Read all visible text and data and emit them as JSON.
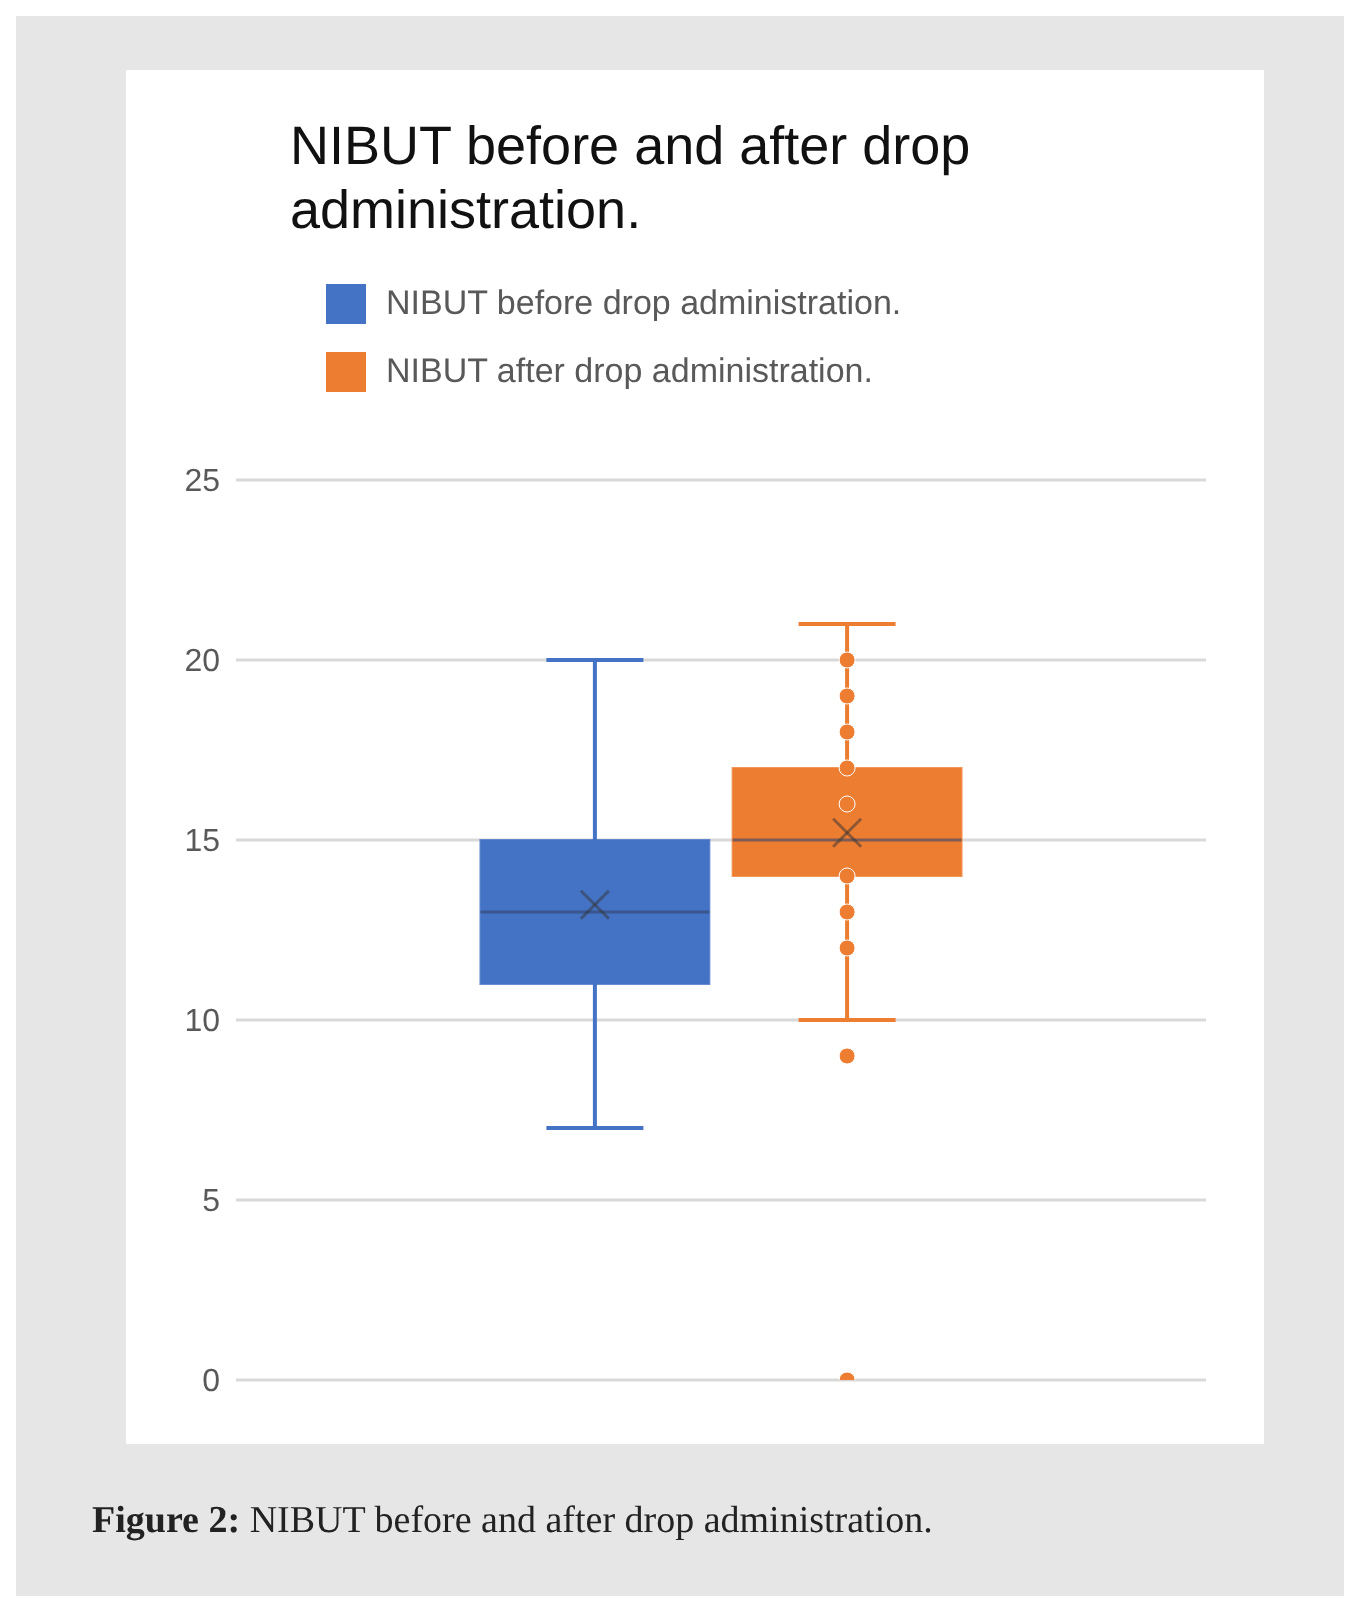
{
  "chart_data": {
    "type": "box",
    "title": "NIBUT before and after drop administration.",
    "categories": [
      null
    ],
    "series": [
      {
        "name": "NIBUT before drop administration.",
        "color": "#4472c4",
        "boxes": [
          {
            "low": 7,
            "q1": 11,
            "median": 13,
            "q3": 15,
            "high": 20,
            "mean": 13.2
          }
        ]
      },
      {
        "name": "NIBUT after drop administration.",
        "color": "#ed7d31",
        "boxes": [
          {
            "low": 10,
            "q1": 14,
            "median": 15,
            "q3": 17,
            "high": 21,
            "mean": 15.2,
            "outliers": [
              0,
              9,
              12,
              13,
              14,
              16,
              17,
              18,
              19,
              20
            ]
          }
        ]
      }
    ],
    "ylim": [
      0,
      25
    ],
    "yticks": [
      0,
      5,
      10,
      15,
      20,
      25
    ],
    "grid": "y",
    "legend": "top",
    "marker": "circle",
    "annotations": [
      "Figure 2: NIBUT before and after drop administration."
    ]
  }
}
